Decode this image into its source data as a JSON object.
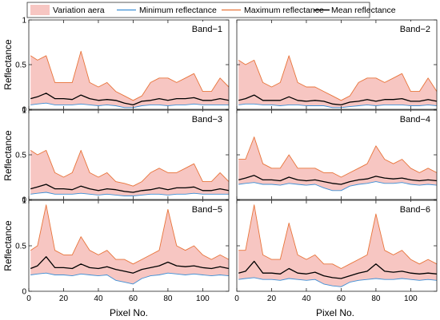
{
  "figure": {
    "ylabel": "Reflectance",
    "xlabel": "Pixel No."
  },
  "legend": {
    "placement": "top",
    "items": [
      {
        "label": "Variation aera",
        "kind": "area"
      },
      {
        "label": "Minimum reflectance",
        "kind": "min"
      },
      {
        "label": "Maximum reflectance",
        "kind": "max"
      },
      {
        "label": "Mean reflectance",
        "kind": "mean"
      }
    ]
  },
  "colors": {
    "area_fill": "#f7c6c2",
    "min_line": "#3d8fd6",
    "max_line": "#e8743a",
    "mean_line": "#000000",
    "axis": "#222222"
  },
  "chart_data": [
    {
      "type": "area",
      "title": "Band−1",
      "x": [
        1,
        5,
        10,
        15,
        20,
        25,
        30,
        35,
        40,
        45,
        50,
        55,
        60,
        65,
        70,
        75,
        80,
        85,
        90,
        95,
        100,
        105,
        110,
        115
      ],
      "series": [
        {
          "name": "Maximum reflectance",
          "values": [
            0.6,
            0.55,
            0.6,
            0.3,
            0.3,
            0.3,
            0.65,
            0.3,
            0.25,
            0.3,
            0.2,
            0.15,
            0.1,
            0.15,
            0.3,
            0.35,
            0.35,
            0.3,
            0.35,
            0.4,
            0.2,
            0.2,
            0.35,
            0.25
          ]
        },
        {
          "name": "Mean reflectance",
          "values": [
            0.12,
            0.14,
            0.18,
            0.12,
            0.12,
            0.11,
            0.16,
            0.12,
            0.1,
            0.11,
            0.1,
            0.07,
            0.05,
            0.09,
            0.1,
            0.12,
            0.1,
            0.12,
            0.12,
            0.13,
            0.1,
            0.1,
            0.12,
            0.1
          ]
        },
        {
          "name": "Minimum reflectance",
          "values": [
            0.05,
            0.06,
            0.07,
            0.05,
            0.05,
            0.05,
            0.06,
            0.05,
            0.04,
            0.05,
            0.04,
            0.02,
            0.02,
            0.04,
            0.05,
            0.05,
            0.04,
            0.05,
            0.05,
            0.06,
            0.05,
            0.05,
            0.05,
            0.05
          ]
        }
      ],
      "xlim": [
        0,
        115
      ],
      "ylim": [
        0,
        1
      ],
      "xticks": [],
      "yticks": [
        "0",
        "0.5",
        "1"
      ]
    },
    {
      "type": "area",
      "title": "Band−2",
      "x": [
        1,
        5,
        10,
        15,
        20,
        25,
        30,
        35,
        40,
        45,
        50,
        55,
        60,
        65,
        70,
        75,
        80,
        85,
        90,
        95,
        100,
        105,
        110,
        115
      ],
      "series": [
        {
          "name": "Maximum reflectance",
          "values": [
            0.55,
            0.5,
            0.55,
            0.3,
            0.25,
            0.3,
            0.6,
            0.3,
            0.25,
            0.25,
            0.2,
            0.15,
            0.1,
            0.15,
            0.3,
            0.35,
            0.35,
            0.3,
            0.35,
            0.4,
            0.2,
            0.2,
            0.35,
            0.2
          ]
        },
        {
          "name": "Mean reflectance",
          "values": [
            0.1,
            0.12,
            0.16,
            0.1,
            0.1,
            0.1,
            0.14,
            0.1,
            0.09,
            0.1,
            0.09,
            0.06,
            0.05,
            0.08,
            0.09,
            0.11,
            0.09,
            0.11,
            0.11,
            0.12,
            0.09,
            0.09,
            0.11,
            0.09
          ]
        },
        {
          "name": "Minimum reflectance",
          "values": [
            0.05,
            0.06,
            0.06,
            0.05,
            0.05,
            0.04,
            0.05,
            0.05,
            0.04,
            0.04,
            0.04,
            0.02,
            0.02,
            0.03,
            0.04,
            0.05,
            0.04,
            0.05,
            0.05,
            0.05,
            0.04,
            0.04,
            0.05,
            0.04
          ]
        }
      ],
      "xlim": [
        0,
        115
      ],
      "ylim": [
        0,
        1
      ],
      "xticks": [],
      "yticks": []
    },
    {
      "type": "area",
      "title": "Band−3",
      "x": [
        1,
        5,
        10,
        15,
        20,
        25,
        30,
        35,
        40,
        45,
        50,
        55,
        60,
        65,
        70,
        75,
        80,
        85,
        90,
        95,
        100,
        105,
        110,
        115
      ],
      "series": [
        {
          "name": "Maximum reflectance",
          "values": [
            0.55,
            0.5,
            0.55,
            0.3,
            0.25,
            0.3,
            0.55,
            0.3,
            0.25,
            0.3,
            0.2,
            0.18,
            0.15,
            0.2,
            0.3,
            0.35,
            0.3,
            0.3,
            0.35,
            0.4,
            0.2,
            0.2,
            0.3,
            0.2
          ]
        },
        {
          "name": "Mean reflectance",
          "values": [
            0.12,
            0.14,
            0.17,
            0.12,
            0.12,
            0.11,
            0.15,
            0.12,
            0.1,
            0.12,
            0.11,
            0.09,
            0.08,
            0.1,
            0.11,
            0.13,
            0.11,
            0.13,
            0.13,
            0.14,
            0.1,
            0.1,
            0.12,
            0.1
          ]
        },
        {
          "name": "Minimum reflectance",
          "values": [
            0.06,
            0.07,
            0.08,
            0.06,
            0.06,
            0.06,
            0.07,
            0.06,
            0.05,
            0.06,
            0.05,
            0.04,
            0.04,
            0.05,
            0.06,
            0.06,
            0.05,
            0.06,
            0.06,
            0.07,
            0.06,
            0.06,
            0.06,
            0.06
          ]
        }
      ],
      "xlim": [
        0,
        115
      ],
      "ylim": [
        0,
        1
      ],
      "xticks": [],
      "yticks": [
        "0",
        "0.5",
        "1"
      ]
    },
    {
      "type": "area",
      "title": "Band−4",
      "x": [
        1,
        5,
        10,
        15,
        20,
        25,
        30,
        35,
        40,
        45,
        50,
        55,
        60,
        65,
        70,
        75,
        80,
        85,
        90,
        95,
        100,
        105,
        110,
        115
      ],
      "series": [
        {
          "name": "Maximum reflectance",
          "values": [
            0.45,
            0.45,
            0.7,
            0.4,
            0.35,
            0.35,
            0.5,
            0.35,
            0.35,
            0.35,
            0.3,
            0.3,
            0.25,
            0.3,
            0.35,
            0.4,
            0.6,
            0.45,
            0.4,
            0.45,
            0.35,
            0.3,
            0.35,
            0.3
          ]
        },
        {
          "name": "Mean reflectance",
          "values": [
            0.22,
            0.24,
            0.27,
            0.22,
            0.22,
            0.21,
            0.25,
            0.22,
            0.21,
            0.22,
            0.2,
            0.18,
            0.17,
            0.2,
            0.22,
            0.23,
            0.26,
            0.24,
            0.23,
            0.24,
            0.22,
            0.21,
            0.22,
            0.21
          ]
        },
        {
          "name": "Minimum reflectance",
          "values": [
            0.17,
            0.18,
            0.19,
            0.17,
            0.17,
            0.16,
            0.18,
            0.17,
            0.16,
            0.17,
            0.13,
            0.1,
            0.1,
            0.15,
            0.17,
            0.18,
            0.2,
            0.18,
            0.18,
            0.19,
            0.17,
            0.16,
            0.17,
            0.16
          ]
        }
      ],
      "xlim": [
        0,
        115
      ],
      "ylim": [
        0,
        1
      ],
      "xticks": [],
      "yticks": []
    },
    {
      "type": "area",
      "title": "Band−5",
      "x": [
        1,
        5,
        10,
        15,
        20,
        25,
        30,
        35,
        40,
        45,
        50,
        55,
        60,
        65,
        70,
        75,
        80,
        85,
        90,
        95,
        100,
        105,
        110,
        115
      ],
      "series": [
        {
          "name": "Maximum reflectance",
          "values": [
            0.45,
            0.5,
            0.95,
            0.45,
            0.4,
            0.4,
            0.6,
            0.45,
            0.4,
            0.45,
            0.35,
            0.35,
            0.3,
            0.35,
            0.4,
            0.45,
            0.9,
            0.5,
            0.45,
            0.5,
            0.4,
            0.35,
            0.4,
            0.35
          ]
        },
        {
          "name": "Mean reflectance",
          "values": [
            0.25,
            0.28,
            0.38,
            0.26,
            0.26,
            0.25,
            0.3,
            0.26,
            0.25,
            0.27,
            0.24,
            0.22,
            0.2,
            0.24,
            0.26,
            0.28,
            0.32,
            0.28,
            0.27,
            0.28,
            0.26,
            0.25,
            0.27,
            0.25
          ]
        },
        {
          "name": "Minimum reflectance",
          "values": [
            0.18,
            0.19,
            0.2,
            0.18,
            0.18,
            0.17,
            0.19,
            0.18,
            0.17,
            0.18,
            0.12,
            0.1,
            0.08,
            0.14,
            0.17,
            0.18,
            0.2,
            0.19,
            0.18,
            0.19,
            0.18,
            0.17,
            0.18,
            0.17
          ]
        }
      ],
      "xlim": [
        0,
        115
      ],
      "ylim": [
        0,
        1
      ],
      "xticks": [
        "0",
        "20",
        "40",
        "60",
        "80",
        "100"
      ],
      "yticks": [
        "0",
        "0.5",
        "1"
      ]
    },
    {
      "type": "area",
      "title": "Band−6",
      "x": [
        1,
        5,
        10,
        15,
        20,
        25,
        30,
        35,
        40,
        45,
        50,
        55,
        60,
        65,
        70,
        75,
        80,
        85,
        90,
        95,
        100,
        105,
        110,
        115
      ],
      "series": [
        {
          "name": "Maximum reflectance",
          "values": [
            0.45,
            0.45,
            0.95,
            0.4,
            0.35,
            0.35,
            0.75,
            0.4,
            0.35,
            0.4,
            0.3,
            0.3,
            0.25,
            0.3,
            0.35,
            0.4,
            0.85,
            0.45,
            0.4,
            0.45,
            0.35,
            0.3,
            0.35,
            0.3
          ]
        },
        {
          "name": "Mean reflectance",
          "values": [
            0.2,
            0.22,
            0.33,
            0.2,
            0.2,
            0.19,
            0.25,
            0.2,
            0.19,
            0.21,
            0.17,
            0.15,
            0.14,
            0.17,
            0.2,
            0.22,
            0.3,
            0.22,
            0.21,
            0.22,
            0.2,
            0.19,
            0.2,
            0.19
          ]
        },
        {
          "name": "Minimum reflectance",
          "values": [
            0.13,
            0.14,
            0.15,
            0.13,
            0.13,
            0.12,
            0.14,
            0.13,
            0.12,
            0.13,
            0.08,
            0.06,
            0.05,
            0.1,
            0.12,
            0.13,
            0.14,
            0.13,
            0.13,
            0.14,
            0.13,
            0.12,
            0.13,
            0.12
          ]
        }
      ],
      "xlim": [
        0,
        115
      ],
      "ylim": [
        0,
        1
      ],
      "xticks": [
        "0",
        "20",
        "40",
        "60",
        "80",
        "100"
      ],
      "yticks": []
    }
  ]
}
